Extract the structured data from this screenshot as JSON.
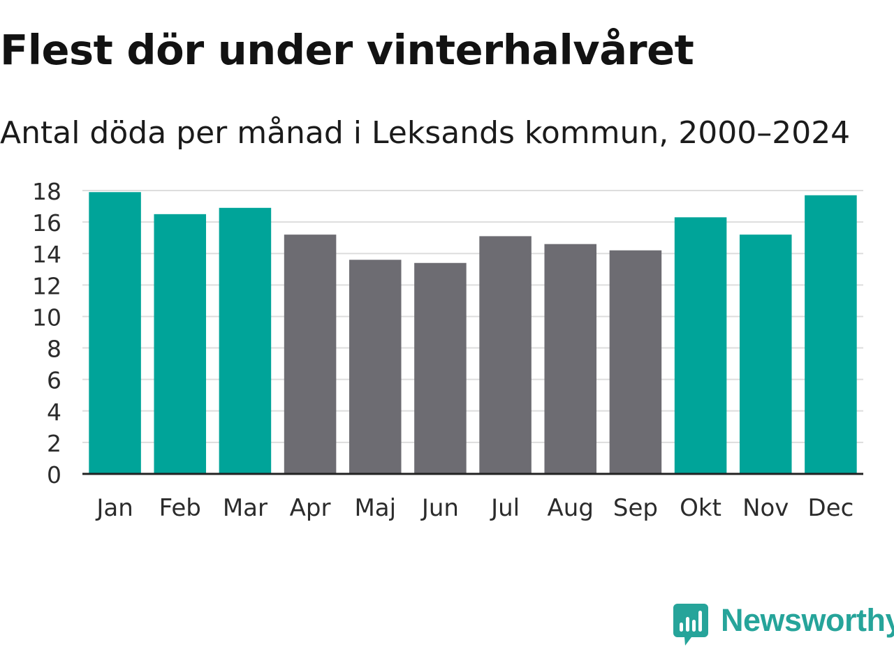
{
  "chart_data": {
    "type": "bar",
    "title": "Flest dör under vinterhalvåret",
    "subtitle": "Antal döda per månad i Leksands kommun, 2000–2024",
    "xlabel": "",
    "ylabel": "",
    "categories": [
      "Jan",
      "Feb",
      "Mar",
      "Apr",
      "Maj",
      "Jun",
      "Jul",
      "Aug",
      "Sep",
      "Okt",
      "Nov",
      "Dec"
    ],
    "values": [
      17.9,
      16.5,
      16.9,
      15.2,
      13.6,
      13.4,
      15.1,
      14.6,
      14.2,
      16.3,
      15.2,
      17.7
    ],
    "highlight": [
      true,
      true,
      true,
      false,
      false,
      false,
      false,
      false,
      false,
      true,
      true,
      true
    ],
    "ylim": [
      0,
      18
    ],
    "yticks": [
      0,
      2,
      4,
      6,
      8,
      10,
      12,
      14,
      16,
      18
    ],
    "grid": true,
    "colors": {
      "winter": "#00a499",
      "summer": "#6d6c72",
      "grid": "#dddddd",
      "axis": "#222222",
      "tick_text": "#2b2b2b"
    }
  },
  "brand": {
    "name": "Newsworthy",
    "logo_icon": "newsworthy-chart-bubble-icon",
    "color": "#26a49a"
  }
}
